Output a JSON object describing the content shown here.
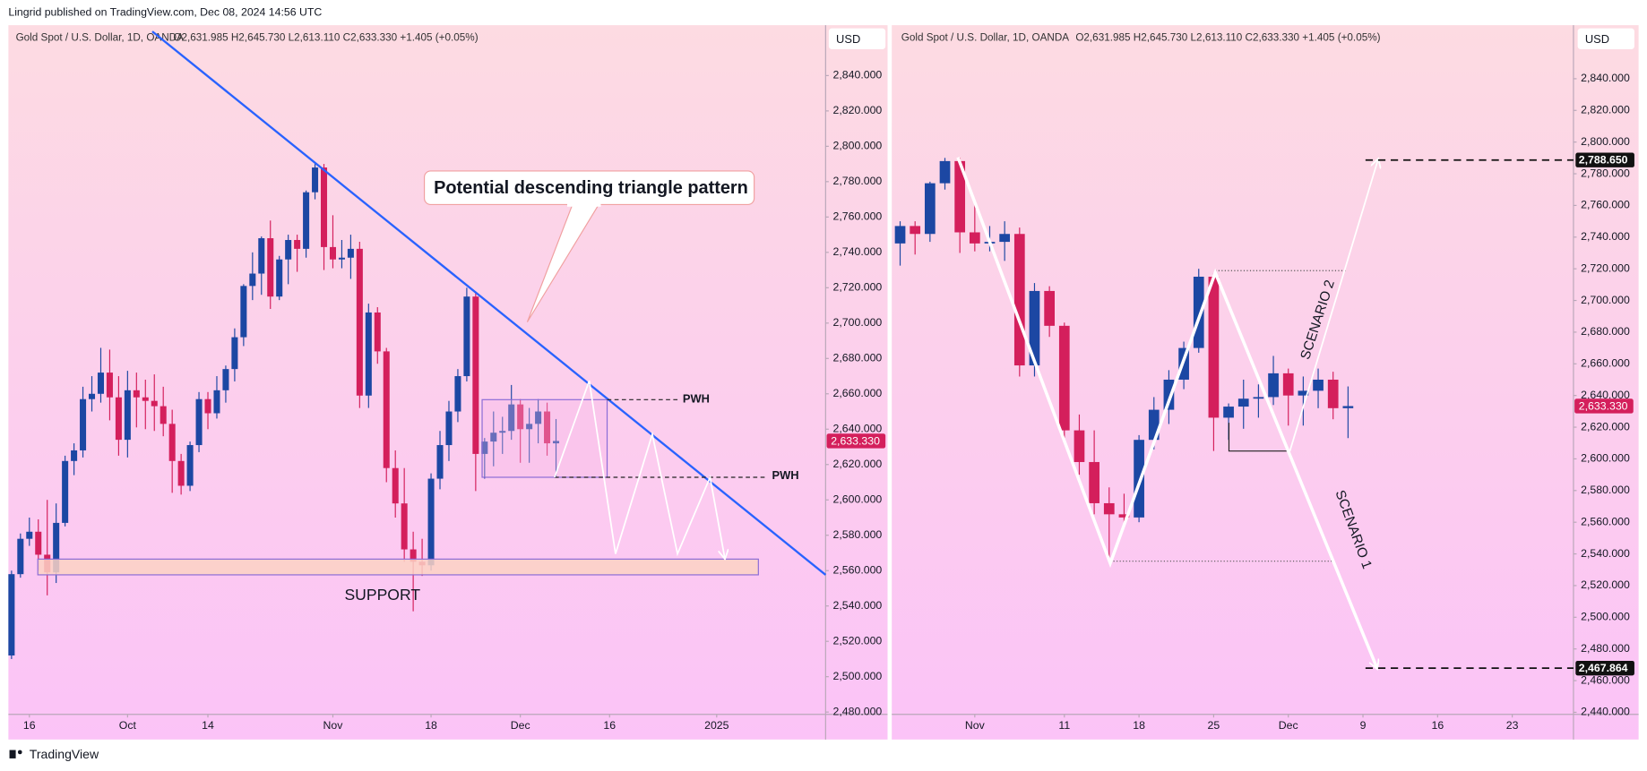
{
  "header": {
    "text": "Lingrid published on TradingView.com, Dec 08, 2024 14:56 UTC"
  },
  "footer": {
    "text": "TradingView"
  },
  "chart_data": [
    {
      "type": "candlestick",
      "symbol": "Gold Spot / U.S. Dollar, 1D, OANDA",
      "ohlc_text": "O2,631.985 H2,645.730 L2,613.110 C2,633.330 +1.405 (+0.05%)",
      "currency": "USD",
      "up_color": "#1c47a3",
      "down_color": "#d41f5c",
      "x": [
        -2,
        -1,
        0,
        1,
        2,
        3,
        4,
        5,
        6,
        7,
        8,
        9,
        10,
        11,
        12,
        13,
        14,
        15,
        16,
        17,
        18,
        19,
        20,
        21,
        22,
        23,
        24,
        25,
        26,
        27,
        28,
        29,
        30,
        31,
        32,
        33,
        34,
        35,
        36,
        37,
        38,
        39,
        40,
        41,
        42,
        43,
        44,
        45,
        46,
        47,
        48,
        49,
        50,
        51,
        52,
        53,
        54,
        55,
        56,
        57,
        58,
        59
      ],
      "open": [
        2512,
        2558,
        2578,
        2582,
        2569,
        2559,
        2587,
        2622,
        2628,
        2657,
        2660,
        2672,
        2658,
        2634,
        2662,
        2658,
        2656,
        2653,
        2643,
        2622,
        2608,
        2631,
        2657,
        2649,
        2662,
        2674,
        2692,
        2721,
        2728,
        2748,
        2715,
        2736,
        2747,
        2742,
        2774,
        2788,
        2743,
        2736,
        2737,
        2742,
        2659,
        2706,
        2684,
        2618,
        2598,
        2572,
        2565,
        2563,
        2612,
        2631,
        2650,
        2670,
        2715,
        2626,
        2633,
        2638,
        2639,
        2654,
        2640,
        2643,
        2650,
        2631.985
      ],
      "high": [
        2560,
        2581,
        2590,
        2589,
        2600,
        2598,
        2625,
        2632,
        2664,
        2670,
        2686,
        2685,
        2670,
        2673,
        2672,
        2668,
        2671,
        2664,
        2651,
        2626,
        2633,
        2661,
        2661,
        2670,
        2676,
        2697,
        2722,
        2740,
        2749,
        2758,
        2738,
        2750,
        2750,
        2775,
        2790,
        2790,
        2761,
        2747,
        2750,
        2746,
        2711,
        2709,
        2686,
        2628,
        2618,
        2582,
        2578,
        2615,
        2639,
        2656,
        2674,
        2720,
        2717,
        2635,
        2650,
        2647,
        2665,
        2657,
        2652,
        2657,
        2655,
        2645.73
      ],
      "low": [
        2510,
        2556,
        2574,
        2560,
        2546,
        2553,
        2585,
        2614,
        2624,
        2650,
        2655,
        2645,
        2625,
        2624,
        2641,
        2640,
        2639,
        2636,
        2604,
        2603,
        2605,
        2627,
        2640,
        2646,
        2655,
        2667,
        2687,
        2713,
        2716,
        2708,
        2713,
        2722,
        2729,
        2737,
        2770,
        2730,
        2731,
        2731,
        2725,
        2652,
        2652,
        2677,
        2610,
        2590,
        2565,
        2537,
        2557,
        2560,
        2606,
        2622,
        2644,
        2667,
        2605,
        2612,
        2619,
        2626,
        2634,
        2621,
        2621,
        2632,
        2625,
        2613.11
      ],
      "close": [
        2558,
        2578,
        2582,
        2569,
        2559,
        2587,
        2622,
        2628,
        2657,
        2660,
        2672,
        2658,
        2634,
        2662,
        2658,
        2656,
        2653,
        2643,
        2622,
        2608,
        2631,
        2657,
        2649,
        2662,
        2674,
        2692,
        2721,
        2728,
        2748,
        2715,
        2736,
        2747,
        2742,
        2774,
        2788,
        2743,
        2736,
        2737,
        2742,
        2659,
        2706,
        2684,
        2618,
        2598,
        2572,
        2565,
        2563,
        2612,
        2631,
        2650,
        2670,
        2715,
        2626,
        2633,
        2638,
        2639,
        2654,
        2640,
        2643,
        2650,
        2632,
        2633.33
      ],
      "xlim": [
        -2.35,
        89.2
      ],
      "xticks": [
        {
          "value": 0,
          "label": "16"
        },
        {
          "value": 11,
          "label": "Oct"
        },
        {
          "value": 20,
          "label": "14"
        },
        {
          "value": 34,
          "label": "Nov"
        },
        {
          "value": 45,
          "label": "18"
        },
        {
          "value": 55,
          "label": "Dec"
        },
        {
          "value": 65,
          "label": "16"
        },
        {
          "value": 77,
          "label": "2025"
        }
      ],
      "ylim": [
        2478.7,
        2868.5
      ],
      "yticks": [
        {
          "value": 2480,
          "label": "2,480.000"
        },
        {
          "value": 2500,
          "label": "2,500.000"
        },
        {
          "value": 2520,
          "label": "2,520.000"
        },
        {
          "value": 2540,
          "label": "2,540.000"
        },
        {
          "value": 2560,
          "label": "2,560.000"
        },
        {
          "value": 2580,
          "label": "2,580.000"
        },
        {
          "value": 2600,
          "label": "2,600.000"
        },
        {
          "value": 2620,
          "label": "2,620.000"
        },
        {
          "value": 2640,
          "label": "2,640.000"
        },
        {
          "value": 2660,
          "label": "2,660.000"
        },
        {
          "value": 2680,
          "label": "2,680.000"
        },
        {
          "value": 2700,
          "label": "2,700.000"
        },
        {
          "value": 2720,
          "label": "2,720.000"
        },
        {
          "value": 2740,
          "label": "2,740.000"
        },
        {
          "value": 2760,
          "label": "2,760.000"
        },
        {
          "value": 2780,
          "label": "2,780.000"
        },
        {
          "value": 2800,
          "label": "2,800.000"
        },
        {
          "value": 2820,
          "label": "2,820.000"
        },
        {
          "value": 2840,
          "label": "2,840.000"
        }
      ],
      "last_price": {
        "value": 2633.33,
        "label": "2,633.330"
      },
      "annotations": [
        "Potential descending triangle pattern",
        "PWH",
        "PWH",
        "SUPPORT"
      ]
    },
    {
      "type": "candlestick",
      "symbol": "Gold Spot / U.S. Dollar, 1D, OANDA",
      "ohlc_text": "O2,631.985 H2,645.730 L2,613.110 C2,633.330 +1.405 (+0.05%)",
      "currency": "USD",
      "up_color": "#1c47a3",
      "down_color": "#d41f5c",
      "x": [
        -5,
        -4,
        -3,
        -2,
        -1,
        0,
        1,
        2,
        3,
        4,
        5,
        6,
        7,
        8,
        9,
        10,
        11,
        12,
        13,
        14,
        15,
        16,
        17,
        18,
        19,
        20,
        21,
        22,
        23,
        24,
        25
      ],
      "open": [
        2736,
        2747,
        2742,
        2774,
        2788,
        2743,
        2736,
        2737,
        2742,
        2659,
        2706,
        2684,
        2618,
        2598,
        2572,
        2565,
        2563,
        2612,
        2631,
        2650,
        2670,
        2715,
        2626,
        2633,
        2638,
        2639,
        2654,
        2640,
        2643,
        2650,
        2631.985
      ],
      "high": [
        2750,
        2750,
        2775,
        2790,
        2790,
        2761,
        2747,
        2750,
        2746,
        2711,
        2709,
        2686,
        2628,
        2618,
        2582,
        2578,
        2615,
        2639,
        2656,
        2674,
        2720,
        2717,
        2635,
        2650,
        2647,
        2665,
        2657,
        2652,
        2657,
        2655,
        2645.73
      ],
      "low": [
        2722,
        2729,
        2737,
        2770,
        2730,
        2731,
        2731,
        2725,
        2652,
        2652,
        2677,
        2610,
        2590,
        2565,
        2537,
        2557,
        2560,
        2606,
        2622,
        2644,
        2667,
        2605,
        2612,
        2619,
        2626,
        2634,
        2621,
        2621,
        2632,
        2625,
        2613.11
      ],
      "close": [
        2747,
        2742,
        2774,
        2788,
        2743,
        2736,
        2737,
        2742,
        2659,
        2706,
        2684,
        2618,
        2598,
        2572,
        2565,
        2563,
        2612,
        2631,
        2650,
        2670,
        2715,
        2626,
        2633,
        2638,
        2639,
        2654,
        2640,
        2643,
        2650,
        2632,
        2633.33
      ],
      "xlim": [
        -5.56,
        40.1
      ],
      "xticks": [
        {
          "value": 0,
          "label": "Nov"
        },
        {
          "value": 6,
          "label": "11"
        },
        {
          "value": 11,
          "label": "18"
        },
        {
          "value": 16,
          "label": "25"
        },
        {
          "value": 21,
          "label": "Dec"
        },
        {
          "value": 26,
          "label": "9"
        },
        {
          "value": 31,
          "label": "16"
        },
        {
          "value": 36,
          "label": "23"
        }
      ],
      "ylim": [
        2438.7,
        2873.8
      ],
      "yticks": [
        {
          "value": 2440,
          "label": "2,440.000"
        },
        {
          "value": 2460,
          "label": "2,460.000"
        },
        {
          "value": 2480,
          "label": "2,480.000"
        },
        {
          "value": 2500,
          "label": "2,500.000"
        },
        {
          "value": 2520,
          "label": "2,520.000"
        },
        {
          "value": 2540,
          "label": "2,540.000"
        },
        {
          "value": 2560,
          "label": "2,560.000"
        },
        {
          "value": 2580,
          "label": "2,580.000"
        },
        {
          "value": 2600,
          "label": "2,600.000"
        },
        {
          "value": 2620,
          "label": "2,620.000"
        },
        {
          "value": 2640,
          "label": "2,640.000"
        },
        {
          "value": 2660,
          "label": "2,660.000"
        },
        {
          "value": 2680,
          "label": "2,680.000"
        },
        {
          "value": 2700,
          "label": "2,700.000"
        },
        {
          "value": 2720,
          "label": "2,720.000"
        },
        {
          "value": 2740,
          "label": "2,740.000"
        },
        {
          "value": 2760,
          "label": "2,760.000"
        },
        {
          "value": 2780,
          "label": "2,780.000"
        },
        {
          "value": 2800,
          "label": "2,800.000"
        },
        {
          "value": 2820,
          "label": "2,820.000"
        },
        {
          "value": 2840,
          "label": "2,840.000"
        }
      ],
      "last_price": {
        "value": 2633.33,
        "label": "2,633.330"
      },
      "levels": [
        {
          "value": 2788.65,
          "label": "2,788.650"
        },
        {
          "value": 2467.864,
          "label": "2,467.864"
        }
      ],
      "annotations": [
        "SCENARIO 2",
        "SCENARIO 1"
      ]
    }
  ]
}
